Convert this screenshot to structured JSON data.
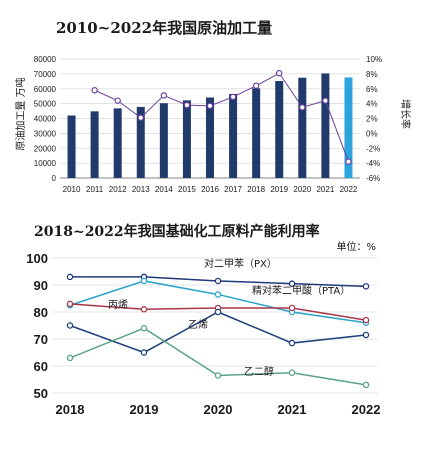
{
  "chart_data": [
    {
      "type": "bar+line",
      "title": "2010~2022年我国原油加工量",
      "ylabel_left": "原油加工量 万吨",
      "ylabel_right": "增长率",
      "categories": [
        "2010",
        "2011",
        "2012",
        "2013",
        "2014",
        "2015",
        "2016",
        "2017",
        "2018",
        "2019",
        "2020",
        "2021",
        "2022"
      ],
      "left_ticks": [
        "80000",
        "70000",
        "60000",
        "50000",
        "40000",
        "30000",
        "20000",
        "10000",
        "0"
      ],
      "right_ticks": [
        "10%",
        "8%",
        "6%",
        "4%",
        "2%",
        "0%",
        "-2%",
        "-4%",
        "-6%"
      ],
      "ylim_left": [
        0,
        80000
      ],
      "ylim_right": [
        -6,
        10
      ],
      "series": [
        {
          "name": "原油加工量 万吨",
          "kind": "bar",
          "values": [
            42000,
            44800,
            46800,
            47800,
            50300,
            52200,
            54100,
            56500,
            60300,
            65200,
            67400,
            70300,
            67600
          ]
        },
        {
          "name": "增长率",
          "kind": "line",
          "values": [
            null,
            5.8,
            4.4,
            2.1,
            5.1,
            3.8,
            3.7,
            4.9,
            6.4,
            8.1,
            3.5,
            4.4,
            -3.8
          ]
        }
      ],
      "colors": {
        "bar": "#1f3a6b",
        "bar_last": "#2da3dc",
        "line": "#6b3f9e",
        "marker_face": "#ffffff"
      },
      "grid": true
    },
    {
      "type": "line",
      "title": "2018~2022年我国基础化工原料产能利用率",
      "unit": "单位：%",
      "x": [
        "2018",
        "2019",
        "2020",
        "2021",
        "2022"
      ],
      "y_ticks": [
        "100",
        "90",
        "80",
        "70",
        "60",
        "50"
      ],
      "ylim": [
        50,
        100
      ],
      "series": [
        {
          "name": "对二甲苯（PX）",
          "values": [
            93,
            93,
            91.5,
            90.5,
            89.5
          ],
          "color": "#1f3a7a"
        },
        {
          "name": "精对苯二甲酸（PTA）",
          "values": [
            82.5,
            91.5,
            86.5,
            80,
            76
          ],
          "color": "#2aa3c9"
        },
        {
          "name": "丙烯",
          "values": [
            83,
            81,
            81.5,
            81.5,
            77
          ],
          "color": "#a8374a"
        },
        {
          "name": "乙烯",
          "values": [
            75,
            65,
            80,
            68.5,
            71.5
          ],
          "color": "#1e3f7a"
        },
        {
          "name": "乙二醇",
          "values": [
            63,
            74,
            56.5,
            57.5,
            53
          ],
          "color": "#5aa383"
        }
      ],
      "grid": true
    }
  ]
}
